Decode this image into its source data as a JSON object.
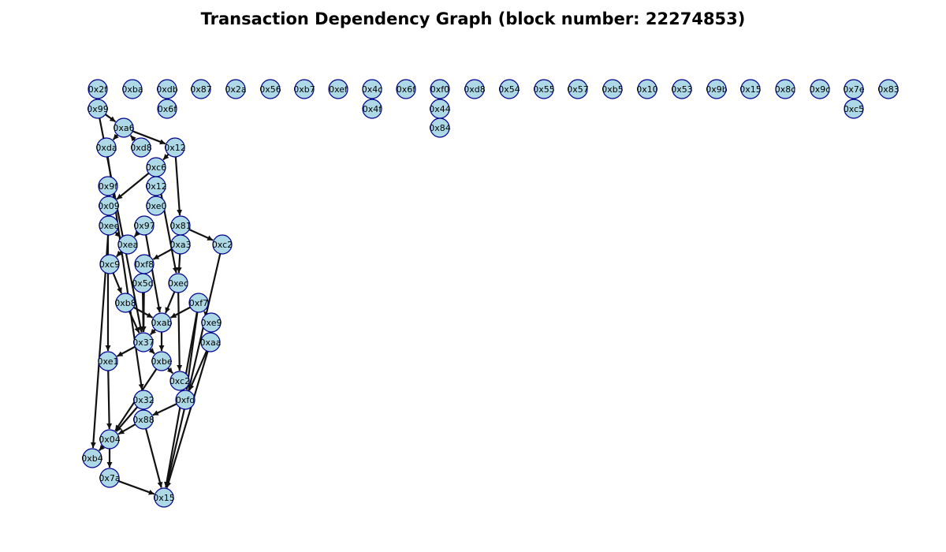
{
  "title": "Transaction Dependency Graph (block number: 22274853)",
  "colors": {
    "node_fill": "#add8e6",
    "node_stroke": "#00008b",
    "edge": "#111111",
    "background": "#ffffff"
  },
  "nodes": [
    {
      "id": "n_2f",
      "label": "0x2f"
    },
    {
      "id": "n_ba",
      "label": "0xba"
    },
    {
      "id": "n_db",
      "label": "0xdb"
    },
    {
      "id": "n_87",
      "label": "0x87"
    },
    {
      "id": "n_2a",
      "label": "0x2a"
    },
    {
      "id": "n_56",
      "label": "0x56"
    },
    {
      "id": "n_b7",
      "label": "0xb7"
    },
    {
      "id": "n_ef",
      "label": "0xef"
    },
    {
      "id": "n_4c",
      "label": "0x4c"
    },
    {
      "id": "n_6f",
      "label": "0x6f"
    },
    {
      "id": "n_f0",
      "label": "0xf0"
    },
    {
      "id": "n_d8a",
      "label": "0xd8"
    },
    {
      "id": "n_54",
      "label": "0x54"
    },
    {
      "id": "n_55",
      "label": "0x55"
    },
    {
      "id": "n_57",
      "label": "0x57"
    },
    {
      "id": "n_b5",
      "label": "0xb5"
    },
    {
      "id": "n_10",
      "label": "0x10"
    },
    {
      "id": "n_53",
      "label": "0x53"
    },
    {
      "id": "n_9b",
      "label": "0x9b"
    },
    {
      "id": "n_15a",
      "label": "0x15"
    },
    {
      "id": "n_8c",
      "label": "0x8c"
    },
    {
      "id": "n_9c",
      "label": "0x9c"
    },
    {
      "id": "n_7e",
      "label": "0x7e"
    },
    {
      "id": "n_83",
      "label": "0x83"
    },
    {
      "id": "n_99",
      "label": "0x99"
    },
    {
      "id": "n_6f2",
      "label": "0x6f"
    },
    {
      "id": "n_4f",
      "label": "0x4f"
    },
    {
      "id": "n_44",
      "label": "0x44"
    },
    {
      "id": "n_c5",
      "label": "0xc5"
    },
    {
      "id": "n_84",
      "label": "0x84"
    },
    {
      "id": "n_a6",
      "label": "0xa6"
    },
    {
      "id": "n_da",
      "label": "0xda"
    },
    {
      "id": "n_d8b",
      "label": "0xd8"
    },
    {
      "id": "n_12a",
      "label": "0x12"
    },
    {
      "id": "n_c6",
      "label": "0xc6"
    },
    {
      "id": "n_9f",
      "label": "0x9f"
    },
    {
      "id": "n_12b",
      "label": "0x12"
    },
    {
      "id": "n_09",
      "label": "0x09"
    },
    {
      "id": "n_e0",
      "label": "0xe0"
    },
    {
      "id": "n_ee",
      "label": "0xee"
    },
    {
      "id": "n_97",
      "label": "0x97"
    },
    {
      "id": "n_81",
      "label": "0x81"
    },
    {
      "id": "n_ea",
      "label": "0xea"
    },
    {
      "id": "n_a3",
      "label": "0xa3"
    },
    {
      "id": "n_c2a",
      "label": "0xc2"
    },
    {
      "id": "n_c9",
      "label": "0xc9"
    },
    {
      "id": "n_f8",
      "label": "0xf8"
    },
    {
      "id": "n_5d",
      "label": "0x5d"
    },
    {
      "id": "n_ec",
      "label": "0xec"
    },
    {
      "id": "n_b8",
      "label": "0xb8"
    },
    {
      "id": "n_f7",
      "label": "0xf7"
    },
    {
      "id": "n_ab",
      "label": "0xab"
    },
    {
      "id": "n_e9",
      "label": "0xe9"
    },
    {
      "id": "n_37",
      "label": "0x37"
    },
    {
      "id": "n_aa",
      "label": "0xaa"
    },
    {
      "id": "n_e1",
      "label": "0xe1"
    },
    {
      "id": "n_be",
      "label": "0xbe"
    },
    {
      "id": "n_c2b",
      "label": "0xc2"
    },
    {
      "id": "n_32",
      "label": "0x32"
    },
    {
      "id": "n_fd",
      "label": "0xfd"
    },
    {
      "id": "n_88",
      "label": "0x88"
    },
    {
      "id": "n_04",
      "label": "0x04"
    },
    {
      "id": "n_b4",
      "label": "0xb4"
    },
    {
      "id": "n_7a",
      "label": "0x7a"
    },
    {
      "id": "n_15b",
      "label": "0x15"
    }
  ],
  "edges": [
    [
      "n_99",
      "n_a6"
    ],
    [
      "n_99",
      "n_37"
    ],
    [
      "n_a6",
      "n_da"
    ],
    [
      "n_a6",
      "n_12a"
    ],
    [
      "n_d8b",
      "n_a6"
    ],
    [
      "n_12a",
      "n_c6"
    ],
    [
      "n_12a",
      "n_81"
    ],
    [
      "n_c6",
      "n_09"
    ],
    [
      "n_c6",
      "n_ec"
    ],
    [
      "n_da",
      "n_32"
    ],
    [
      "n_9f",
      "n_e1"
    ],
    [
      "n_ee",
      "n_ea"
    ],
    [
      "n_ee",
      "n_b4"
    ],
    [
      "n_97",
      "n_ea"
    ],
    [
      "n_97",
      "n_ab"
    ],
    [
      "n_81",
      "n_c2a"
    ],
    [
      "n_81",
      "n_a3"
    ],
    [
      "n_a3",
      "n_f8"
    ],
    [
      "n_a3",
      "n_ec"
    ],
    [
      "n_ea",
      "n_c9"
    ],
    [
      "n_c9",
      "n_b8"
    ],
    [
      "n_c2a",
      "n_15b"
    ],
    [
      "n_f8",
      "n_37"
    ],
    [
      "n_5d",
      "n_37"
    ],
    [
      "n_b8",
      "n_ab"
    ],
    [
      "n_b8",
      "n_37"
    ],
    [
      "n_ec",
      "n_ab"
    ],
    [
      "n_ec",
      "n_c2b"
    ],
    [
      "n_f7",
      "n_ab"
    ],
    [
      "n_f7",
      "n_fd"
    ],
    [
      "n_f7",
      "n_15b"
    ],
    [
      "n_e9",
      "n_f7"
    ],
    [
      "n_ab",
      "n_37"
    ],
    [
      "n_ab",
      "n_be"
    ],
    [
      "n_37",
      "n_e1"
    ],
    [
      "n_37",
      "n_be"
    ],
    [
      "n_aa",
      "n_fd"
    ],
    [
      "n_aa",
      "n_15b"
    ],
    [
      "n_e1",
      "n_04"
    ],
    [
      "n_be",
      "n_c2b"
    ],
    [
      "n_be",
      "n_04"
    ],
    [
      "n_fd",
      "n_88"
    ],
    [
      "n_32",
      "n_04"
    ],
    [
      "n_88",
      "n_04"
    ],
    [
      "n_88",
      "n_15b"
    ],
    [
      "n_04",
      "n_b4"
    ],
    [
      "n_04",
      "n_7a"
    ],
    [
      "n_7a",
      "n_15b"
    ]
  ]
}
